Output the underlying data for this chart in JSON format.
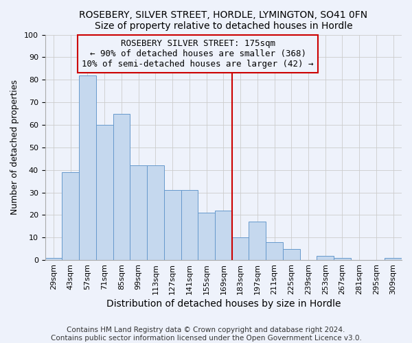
{
  "title": "ROSEBERY, SILVER STREET, HORDLE, LYMINGTON, SO41 0FN",
  "subtitle": "Size of property relative to detached houses in Hordle",
  "xlabel": "Distribution of detached houses by size in Hordle",
  "ylabel": "Number of detached properties",
  "categories": [
    "29sqm",
    "43sqm",
    "57sqm",
    "71sqm",
    "85sqm",
    "99sqm",
    "113sqm",
    "127sqm",
    "141sqm",
    "155sqm",
    "169sqm",
    "183sqm",
    "197sqm",
    "211sqm",
    "225sqm",
    "239sqm",
    "253sqm",
    "267sqm",
    "281sqm",
    "295sqm",
    "309sqm"
  ],
  "values": [
    1,
    39,
    82,
    60,
    65,
    42,
    42,
    31,
    31,
    21,
    22,
    10,
    17,
    8,
    5,
    0,
    2,
    1,
    0,
    0,
    1
  ],
  "bar_color": "#c5d8ee",
  "bar_edge_color": "#6699cc",
  "bar_width": 1.0,
  "ylim": [
    0,
    100
  ],
  "vline_color": "#cc0000",
  "annotation_text": "ROSEBERY SILVER STREET: 175sqm\n← 90% of detached houses are smaller (368)\n10% of semi-detached houses are larger (42) →",
  "annotation_box_edge_color": "#cc0000",
  "footnote1": "Contains HM Land Registry data © Crown copyright and database right 2024.",
  "footnote2": "Contains public sector information licensed under the Open Government Licence v3.0.",
  "background_color": "#eef2fb",
  "grid_color": "#cccccc",
  "title_fontsize": 10,
  "xlabel_fontsize": 10,
  "ylabel_fontsize": 9,
  "tick_fontsize": 8,
  "annotation_fontsize": 9,
  "footnote_fontsize": 7.5
}
